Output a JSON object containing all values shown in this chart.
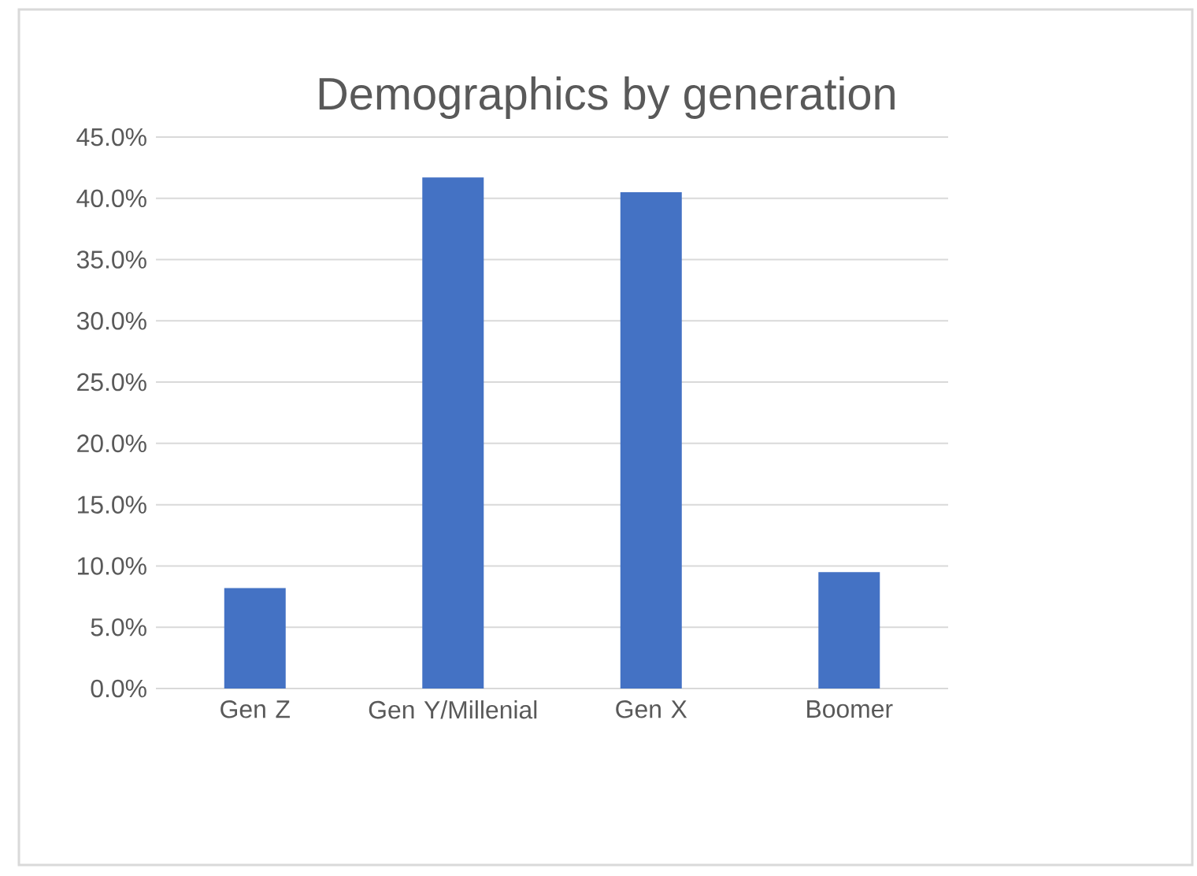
{
  "chart_data": {
    "type": "bar",
    "title": "Demographics by generation",
    "categories": [
      "Gen Z",
      "Gen Y/Millenial",
      "Gen X",
      "Boomer"
    ],
    "values": [
      8.2,
      41.7,
      40.5,
      9.5
    ],
    "color": "#4472c4",
    "ylim": [
      0,
      45
    ],
    "yticks": [
      {
        "value": 0,
        "label": "0.0%"
      },
      {
        "value": 5,
        "label": "5.0%"
      },
      {
        "value": 10,
        "label": "10.0%"
      },
      {
        "value": 15,
        "label": "15.0%"
      },
      {
        "value": 20,
        "label": "20.0%"
      },
      {
        "value": 25,
        "label": "25.0%"
      },
      {
        "value": 30,
        "label": "30.0%"
      },
      {
        "value": 35,
        "label": "35.0%"
      },
      {
        "value": 40,
        "label": "40.0%"
      },
      {
        "value": 45,
        "label": "45.0%"
      }
    ],
    "grid": "y"
  }
}
